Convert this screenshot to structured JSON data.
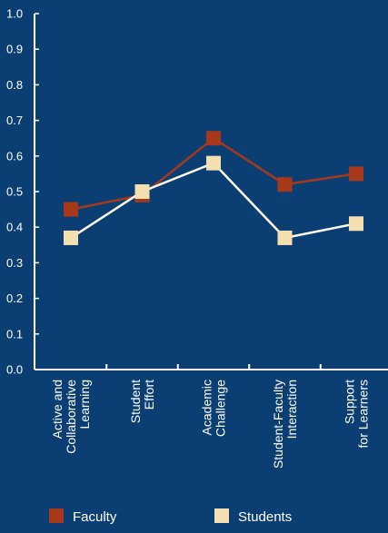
{
  "chart_data": {
    "type": "line",
    "categories": [
      [
        "Active and",
        "Collaborative",
        "Learning"
      ],
      [
        "Student",
        "Effort"
      ],
      [
        "Academic",
        "Challenge"
      ],
      [
        "Student-Faculty",
        "Interaction"
      ],
      [
        "Support",
        "for Learners"
      ]
    ],
    "series": [
      {
        "name": "Faculty",
        "values": [
          0.45,
          0.49,
          0.65,
          0.52,
          0.55
        ],
        "color": "#a8381a"
      },
      {
        "name": "Students",
        "values": [
          0.37,
          0.5,
          0.58,
          0.37,
          0.41
        ],
        "color": "#f3dfb0"
      }
    ],
    "y_ticks": [
      "0.0",
      "0.1",
      "0.2",
      "0.3",
      "0.4",
      "0.5",
      "0.6",
      "0.7",
      "0.8",
      "0.9",
      "1.0"
    ],
    "ylim": [
      0,
      1
    ],
    "grid": false,
    "legend_position": "bottom",
    "colors": {
      "background": "#0b3f73",
      "axis": "#ffffff",
      "faculty_line": "#a8381a",
      "students_line": "#fffbe6"
    }
  }
}
